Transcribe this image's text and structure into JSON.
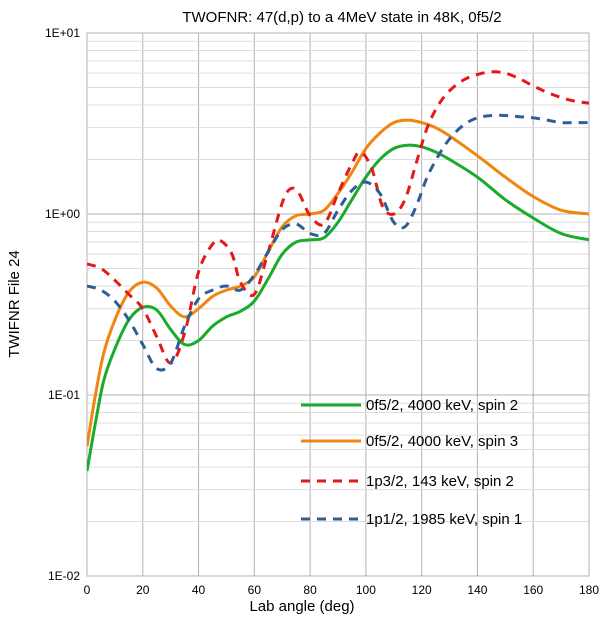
{
  "chart_data": {
    "type": "line",
    "title": "TWOFNR:  47(d,p) to a 4MeV state in 48K, 0f5/2",
    "xlabel": "Lab angle (deg)",
    "ylabel": "TWIFNR File 24",
    "xlim": [
      0,
      180
    ],
    "ylim": [
      0.01,
      10
    ],
    "yscale": "log",
    "grid": true,
    "legend_position": "lower-right",
    "x_ticks": [
      0,
      20,
      40,
      60,
      80,
      100,
      120,
      140,
      160,
      180
    ],
    "y_ticks": [
      {
        "value": 10,
        "label": "1E+01"
      },
      {
        "value": 1,
        "label": "1E+00"
      },
      {
        "value": 0.1,
        "label": "1E-01"
      },
      {
        "value": 0.01,
        "label": "1E-02"
      }
    ],
    "series": [
      {
        "name": "0f5/2, 4000 keV, spin 2",
        "color": "#1aab2a",
        "dash": "solid",
        "x": [
          0,
          3,
          6,
          10,
          15,
          20,
          25,
          30,
          35,
          40,
          45,
          50,
          55,
          60,
          65,
          70,
          75,
          80,
          85,
          90,
          95,
          100,
          105,
          110,
          115,
          120,
          125,
          130,
          140,
          150,
          160,
          170,
          180
        ],
        "y": [
          0.038,
          0.07,
          0.12,
          0.18,
          0.26,
          0.305,
          0.295,
          0.23,
          0.19,
          0.2,
          0.24,
          0.27,
          0.29,
          0.33,
          0.44,
          0.6,
          0.7,
          0.72,
          0.74,
          0.9,
          1.2,
          1.6,
          2.0,
          2.3,
          2.4,
          2.35,
          2.2,
          2.0,
          1.6,
          1.2,
          0.95,
          0.78,
          0.72
        ]
      },
      {
        "name": "0f5/2, 4000 keV, spin 3",
        "color": "#f0850f",
        "dash": "solid",
        "x": [
          0,
          3,
          6,
          10,
          15,
          20,
          25,
          30,
          35,
          40,
          45,
          50,
          55,
          60,
          65,
          70,
          75,
          80,
          85,
          90,
          95,
          100,
          105,
          110,
          115,
          120,
          125,
          130,
          140,
          150,
          160,
          170,
          180
        ],
        "y": [
          0.052,
          0.1,
          0.17,
          0.26,
          0.37,
          0.42,
          0.39,
          0.31,
          0.27,
          0.3,
          0.35,
          0.38,
          0.4,
          0.45,
          0.62,
          0.85,
          0.98,
          1.0,
          1.05,
          1.3,
          1.7,
          2.3,
          2.8,
          3.2,
          3.3,
          3.2,
          3.0,
          2.7,
          2.1,
          1.6,
          1.25,
          1.05,
          1.0
        ]
      },
      {
        "name": "1p3/2, 143 keV, spin 2",
        "color": "#e31a1c",
        "dash": "dashed",
        "x": [
          0,
          5,
          10,
          15,
          20,
          25,
          30,
          35,
          40,
          45,
          48,
          52,
          55,
          60,
          65,
          70,
          73,
          76,
          80,
          85,
          90,
          95,
          98,
          102,
          106,
          110,
          114,
          118,
          122,
          126,
          130,
          135,
          140,
          145,
          150,
          155,
          160,
          165,
          170,
          175,
          180
        ],
        "y": [
          0.53,
          0.5,
          0.43,
          0.36,
          0.3,
          0.21,
          0.15,
          0.22,
          0.48,
          0.68,
          0.71,
          0.6,
          0.42,
          0.36,
          0.62,
          1.15,
          1.38,
          1.3,
          0.98,
          0.88,
          1.3,
          1.9,
          2.2,
          1.8,
          1.1,
          1.0,
          1.2,
          1.9,
          3.0,
          4.0,
          4.8,
          5.5,
          5.9,
          6.1,
          6.0,
          5.6,
          5.1,
          4.7,
          4.4,
          4.2,
          4.1
        ]
      },
      {
        "name": "1p1/2, 1985 keV, spin 1",
        "color": "#2e5e93",
        "dash": "dashed",
        "x": [
          0,
          5,
          10,
          15,
          20,
          25,
          30,
          35,
          40,
          45,
          50,
          55,
          60,
          65,
          70,
          75,
          80,
          85,
          90,
          95,
          100,
          105,
          110,
          114,
          118,
          122,
          126,
          130,
          135,
          140,
          145,
          150,
          155,
          160,
          165,
          170,
          175,
          180
        ],
        "y": [
          0.4,
          0.38,
          0.33,
          0.26,
          0.19,
          0.14,
          0.15,
          0.24,
          0.34,
          0.38,
          0.4,
          0.38,
          0.46,
          0.62,
          0.82,
          0.88,
          0.78,
          0.78,
          1.05,
          1.35,
          1.5,
          1.3,
          0.9,
          0.85,
          1.1,
          1.6,
          2.1,
          2.6,
          3.1,
          3.4,
          3.5,
          3.5,
          3.45,
          3.4,
          3.3,
          3.2,
          3.2,
          3.2
        ]
      }
    ]
  }
}
